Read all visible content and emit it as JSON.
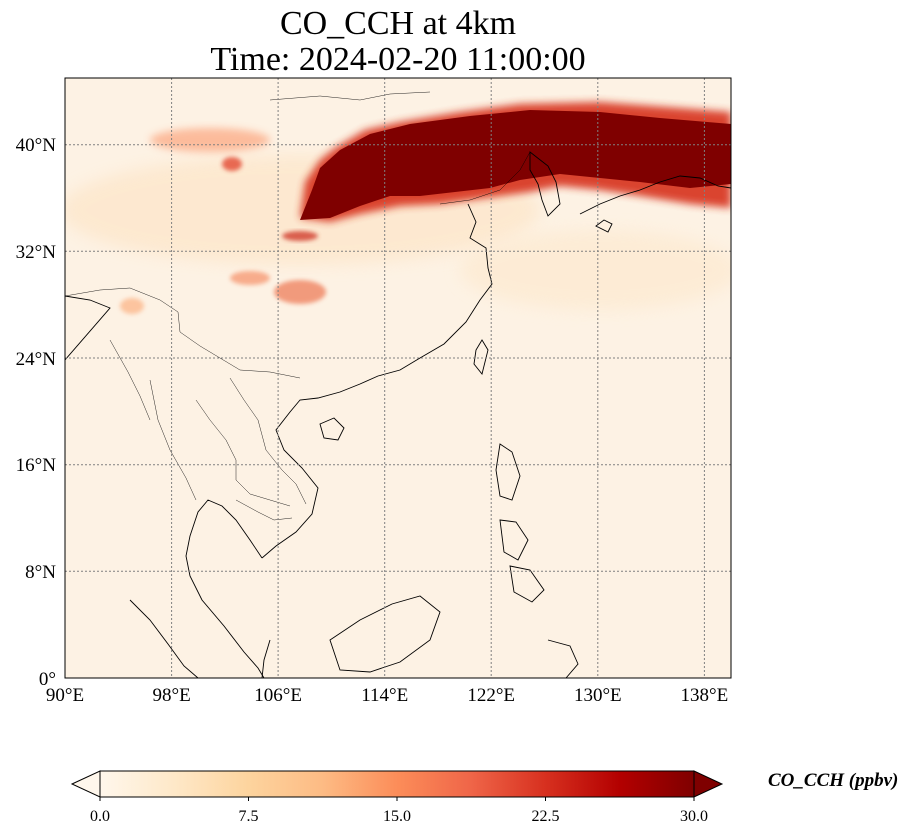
{
  "title": {
    "line1": "CO_CCH at 4km",
    "line2": "Time: 2024-02-20 11:00:00"
  },
  "map": {
    "extent": {
      "lon_min": 90,
      "lon_max": 140,
      "lat_min": 0,
      "lat_max": 45
    },
    "lon_ticks": [
      "90°E",
      "98°E",
      "106°E",
      "114°E",
      "122°E",
      "130°E",
      "138°E"
    ],
    "lat_ticks": [
      "0°",
      "8°N",
      "16°N",
      "24°N",
      "32°N",
      "40°N"
    ],
    "gridlines": true,
    "grid_color": "#808080"
  },
  "colorbar": {
    "label": "CO_CCH (ppbv)",
    "ticks": [
      "0.0",
      "7.5",
      "15.0",
      "22.5",
      "30.0"
    ],
    "min": 0,
    "max": 30,
    "extend": "both",
    "colormap": "OrRd",
    "colors": [
      "#fff7ec",
      "#fee8c8",
      "#fdd49e",
      "#fdbb84",
      "#fc8d59",
      "#ef6548",
      "#d7301f",
      "#b30000",
      "#7f0000"
    ]
  }
}
